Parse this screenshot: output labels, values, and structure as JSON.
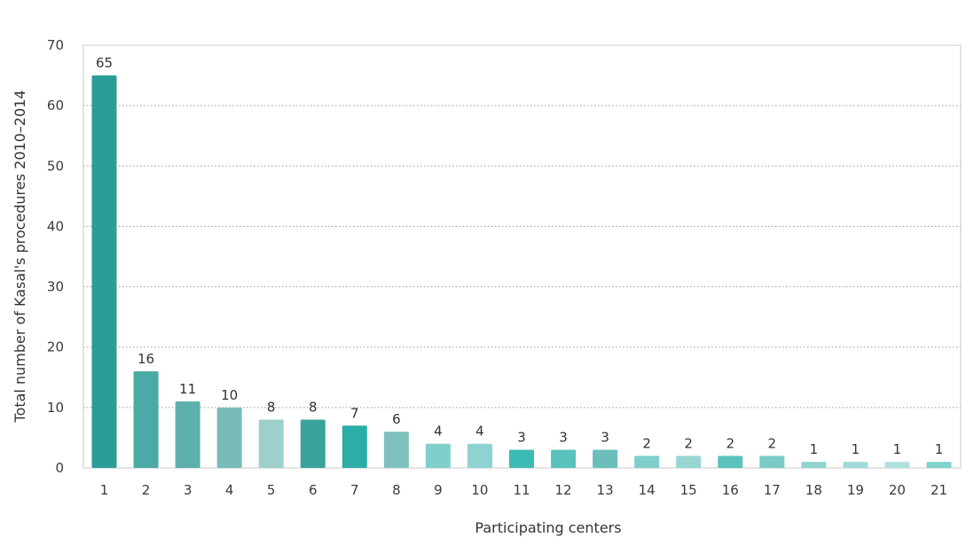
{
  "chart_data": {
    "type": "bar",
    "title": "",
    "xlabel": "Participating centers",
    "ylabel": "Total number of Kasal's procedures 2010–2014",
    "categories": [
      "1",
      "2",
      "3",
      "4",
      "5",
      "6",
      "7",
      "8",
      "9",
      "10",
      "11",
      "12",
      "13",
      "14",
      "15",
      "16",
      "17",
      "18",
      "19",
      "20",
      "21"
    ],
    "values": [
      65,
      16,
      11,
      10,
      8,
      8,
      7,
      6,
      4,
      4,
      3,
      3,
      3,
      2,
      2,
      2,
      2,
      1,
      1,
      1,
      1
    ],
    "data_labels": [
      "65",
      "16",
      "11",
      "10",
      "8",
      "8",
      "7",
      "6",
      "4",
      "4",
      "3",
      "3",
      "3",
      "2",
      "2",
      "2",
      "2",
      "1",
      "1",
      "1",
      "1"
    ],
    "ylim": [
      0,
      70
    ],
    "yticks": [
      0,
      10,
      20,
      30,
      40,
      50,
      60,
      70
    ],
    "ytick_labels": [
      "0",
      "10",
      "20",
      "30",
      "40",
      "50",
      "60",
      "70"
    ],
    "grid": "horizontal dotted",
    "legend": "none",
    "bar_colors": [
      "#2b9c96",
      "#4aaaa5",
      "#5cb0ae",
      "#78bcb9",
      "#9dd0cd",
      "#3aa29d",
      "#2bada8",
      "#80c1be",
      "#80cfcb",
      "#8fd3d0",
      "#3cbab4",
      "#58c2bd",
      "#6cbebb",
      "#7ecfcb",
      "#97d6d3",
      "#5cc2bd",
      "#78cbc7",
      "#8ed4d0",
      "#9edbd8",
      "#b0e0dd",
      "#80d2cd"
    ]
  }
}
